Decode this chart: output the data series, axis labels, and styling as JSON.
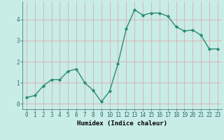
{
  "xlabel": "Humidex (Indice chaleur)",
  "x": [
    0,
    1,
    2,
    3,
    4,
    5,
    6,
    7,
    8,
    9,
    10,
    11,
    12,
    13,
    14,
    15,
    16,
    17,
    18,
    19,
    20,
    21,
    22,
    23
  ],
  "y": [
    0.3,
    0.4,
    0.85,
    1.15,
    1.15,
    1.55,
    1.65,
    1.0,
    0.65,
    0.1,
    0.6,
    1.9,
    3.55,
    4.45,
    4.2,
    4.3,
    4.3,
    4.15,
    3.65,
    3.45,
    3.5,
    3.25,
    2.6,
    2.6
  ],
  "line_color": "#2e8b74",
  "marker": "D",
  "markersize": 2.2,
  "linewidth": 1.0,
  "background_color": "#c8ece6",
  "grid_color": "#d9b0b0",
  "ylim": [
    -0.25,
    4.85
  ],
  "xlim": [
    -0.5,
    23.5
  ],
  "yticks": [
    0,
    1,
    2,
    3,
    4
  ],
  "xticks": [
    0,
    1,
    2,
    3,
    4,
    5,
    6,
    7,
    8,
    9,
    10,
    11,
    12,
    13,
    14,
    15,
    16,
    17,
    18,
    19,
    20,
    21,
    22,
    23
  ],
  "tick_fontsize": 5.5,
  "xlabel_fontsize": 6.5
}
